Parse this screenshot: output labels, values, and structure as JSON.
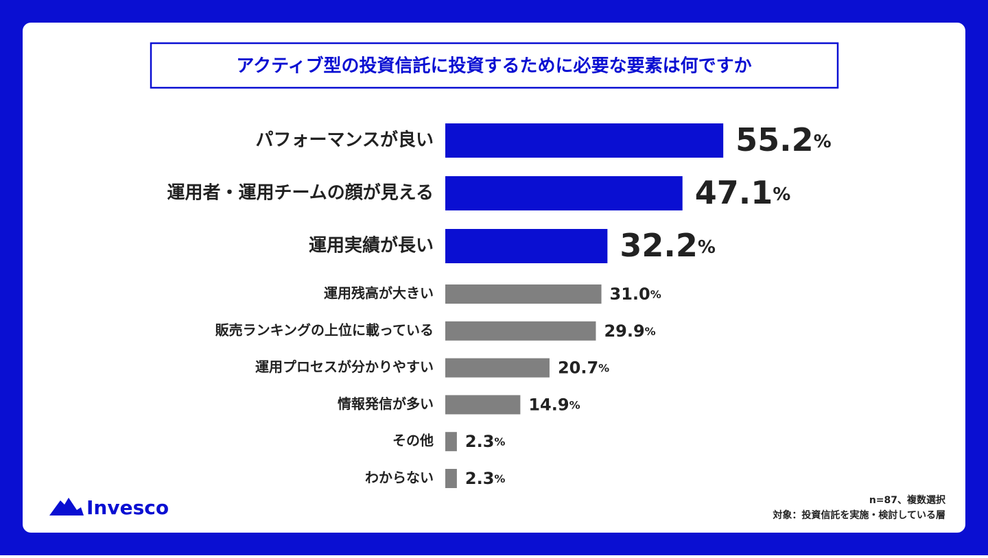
{
  "chart_data": {
    "type": "bar",
    "title": "アクティブ型の投資信託に投資するために必要な要素は何ですか",
    "categories": [
      "パフォーマンスが良い",
      "運用者・運用チームの顔が見える",
      "運用実績が長い",
      "運用残高が大きい",
      "販売ランキングの上位に載っている",
      "運用プロセスが分かりやすい",
      "情報発信が多い",
      "その他",
      "わからない"
    ],
    "values": [
      55.2,
      47.1,
      32.2,
      31.0,
      29.9,
      20.7,
      14.9,
      2.3,
      2.3
    ],
    "value_labels": [
      "55.2",
      "47.1",
      "32.2",
      "31.0",
      "29.9",
      "20.7",
      "14.9",
      "2.3",
      "2.3"
    ],
    "unit": "%",
    "colors": [
      "#0a0fd2",
      "#0a0fd2",
      "#0a0fd2",
      "#808080",
      "#808080",
      "#808080",
      "#808080",
      "#808080",
      "#808080"
    ]
  },
  "logo": "Invesco",
  "notes": [
    "n=87、複数選択",
    "対象：投資信託を実施・検討している層"
  ]
}
